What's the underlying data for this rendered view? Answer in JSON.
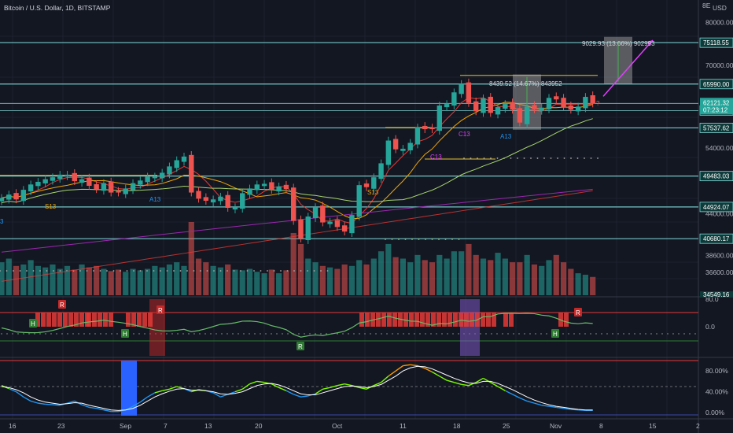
{
  "header": {
    "title": "Bitcoin / U.S. Dollar, 1D, BITSTAMP",
    "currency": "USD",
    "axis_menu": "8E"
  },
  "colors": {
    "bg": "#131722",
    "up": "#26a69a",
    "down": "#ef5350",
    "level": "#7fd8d8",
    "ma_orange": "#f0a500",
    "ma_green": "#a7d46f",
    "ma_purple": "#9c27b0",
    "ma_red": "#e53935",
    "arrow": "#e040fb",
    "stoch_fast": "#7cfc00",
    "stoch_slow": "#ffffff"
  },
  "chart_data": [
    {
      "type": "candlestick",
      "title": "Bitcoin / U.S. Dollar, 1D, BITSTAMP",
      "x_tick_labels": [
        "16",
        "23",
        "Sep",
        "7",
        "13",
        "20",
        "Oct",
        "11",
        "18",
        "25",
        "Nov",
        "8",
        "15",
        "2"
      ],
      "y_tick_labels": [
        "80000.00",
        "70000.00",
        "54000.00",
        "44000.00",
        "38600.00",
        "36600.00"
      ],
      "ylim": [
        34000,
        85000
      ],
      "y_scale": "log",
      "closes": [
        46200,
        46700,
        46000,
        47400,
        48200,
        48600,
        49000,
        49300,
        49700,
        49700,
        48700,
        49000,
        48000,
        47500,
        48400,
        47000,
        47000,
        47600,
        48400,
        48800,
        49400,
        49400,
        50000,
        51000,
        52000,
        52600,
        47000,
        46100,
        45800,
        46000,
        46400,
        44800,
        44900,
        46900,
        47600,
        48200,
        48300,
        47400,
        47900,
        47500,
        43000,
        40700,
        43600,
        44900,
        42800,
        42900,
        42200,
        41600,
        43800,
        48100,
        47800,
        49300,
        51500,
        55300,
        53800,
        53900,
        54900,
        57600,
        57300,
        57300,
        61700,
        62000,
        64300,
        66000,
        62200,
        60600,
        63100,
        60300,
        61400,
        62000,
        60900,
        58500,
        61500,
        61000,
        61300,
        63200,
        62900,
        61400,
        60900,
        61500,
        63400,
        62100
      ],
      "candle_colors": [
        "up",
        "up",
        "down",
        "up",
        "up",
        "up",
        "up",
        "up",
        "up",
        "up",
        "down",
        "up",
        "down",
        "down",
        "up",
        "down",
        "down",
        "up",
        "up",
        "up",
        "up",
        "up",
        "up",
        "up",
        "up",
        "up",
        "down",
        "down",
        "down",
        "up",
        "up",
        "down",
        "up",
        "up",
        "up",
        "up",
        "up",
        "down",
        "up",
        "down",
        "down",
        "down",
        "up",
        "up",
        "down",
        "up",
        "down",
        "down",
        "up",
        "up",
        "down",
        "up",
        "up",
        "up",
        "down",
        "up",
        "up",
        "up",
        "down",
        "down",
        "up",
        "up",
        "up",
        "up",
        "down",
        "down",
        "up",
        "down",
        "up",
        "up",
        "down",
        "down",
        "up",
        "down",
        "up",
        "up",
        "down",
        "down",
        "down",
        "up",
        "up",
        "down"
      ],
      "horizontal_levels": [
        75118.55,
        65990.0,
        62121.32,
        60750.65,
        57537.62,
        49483.03,
        44924.07,
        40680.17
      ],
      "price_labels": {
        "last_price": "62121.32",
        "countdown": "07:23:12",
        "levels": [
          "75118.55",
          "65990.00",
          "60750.65",
          "57537.62",
          "49483.03",
          "44924.07",
          "40680.17"
        ],
        "bottom_cut": "34549.16"
      },
      "annotations": [
        {
          "text": "9029.93 (13.66%) 902993"
        },
        {
          "text": "8439.52 (14.67%) 843952"
        },
        {
          "text": "S13"
        },
        {
          "text": "A13"
        },
        {
          "text": "S13"
        },
        {
          "text": "C13"
        },
        {
          "text": "C13"
        },
        {
          "text": "A13"
        },
        {
          "text": "?"
        },
        {
          "text": "3"
        }
      ],
      "volume": [
        0.45,
        0.5,
        0.4,
        0.42,
        0.48,
        0.4,
        0.38,
        0.42,
        0.36,
        0.4,
        0.35,
        0.42,
        0.38,
        0.4,
        0.36,
        0.33,
        0.35,
        0.32,
        0.36,
        0.34,
        0.36,
        0.4,
        0.38,
        0.42,
        0.45,
        0.4,
        1.0,
        0.5,
        0.45,
        0.4,
        0.38,
        0.42,
        0.35,
        0.34,
        0.36,
        0.32,
        0.3,
        0.35,
        0.3,
        0.34,
        0.85,
        0.7,
        0.5,
        0.45,
        0.4,
        0.38,
        0.36,
        0.42,
        0.4,
        0.48,
        0.42,
        0.5,
        0.6,
        0.7,
        0.52,
        0.5,
        0.45,
        0.55,
        0.48,
        0.45,
        0.55,
        0.5,
        0.6,
        0.6,
        0.7,
        0.55,
        0.5,
        0.48,
        0.58,
        0.5,
        0.45,
        0.45,
        0.55,
        0.42,
        0.4,
        0.48,
        0.55,
        0.45,
        0.36,
        0.3,
        0.28,
        0.25
      ]
    },
    {
      "type": "line",
      "title": "",
      "y_tick_labels": [
        "80.0",
        "0.0"
      ],
      "marker_labels": [
        "H",
        "R",
        "H",
        "R",
        "R",
        "H",
        "R"
      ]
    },
    {
      "type": "line",
      "title": "",
      "y_tick_labels": [
        "80.00%",
        "40.00%",
        "0.00%"
      ],
      "ylim": [
        0,
        100
      ],
      "series": [
        {
          "values": [
            52,
            46,
            40,
            30,
            22,
            18,
            16,
            15,
            14,
            18,
            22,
            15,
            10,
            8,
            5,
            2,
            2,
            5,
            12,
            20,
            30,
            38,
            42,
            45,
            50,
            46,
            40,
            44,
            42,
            38,
            30,
            35,
            40,
            45,
            55,
            60,
            58,
            55,
            48,
            42,
            35,
            30,
            32,
            36,
            45,
            48,
            52,
            55,
            52,
            48,
            45,
            52,
            58,
            70,
            80,
            90,
            92,
            90,
            85,
            78,
            70,
            62,
            58,
            54,
            52,
            58,
            66,
            58,
            50,
            42,
            35,
            28,
            22,
            18,
            14,
            12,
            10,
            8,
            6,
            5,
            4,
            4
          ]
        },
        {
          "values": [
            50,
            48,
            44,
            38,
            30,
            24,
            20,
            18,
            16,
            17,
            19,
            18,
            14,
            11,
            8,
            5,
            4,
            5,
            8,
            14,
            22,
            30,
            36,
            41,
            45,
            46,
            43,
            43,
            42,
            40,
            36,
            35,
            37,
            40,
            46,
            52,
            55,
            56,
            53,
            48,
            42,
            36,
            34,
            34,
            38,
            42,
            46,
            50,
            51,
            50,
            48,
            50,
            54,
            62,
            70,
            80,
            86,
            89,
            88,
            84,
            78,
            72,
            66,
            61,
            57,
            56,
            60,
            60,
            56,
            50,
            44,
            37,
            30,
            24,
            19,
            15,
            12,
            10,
            8,
            6,
            5,
            5
          ]
        }
      ]
    }
  ]
}
